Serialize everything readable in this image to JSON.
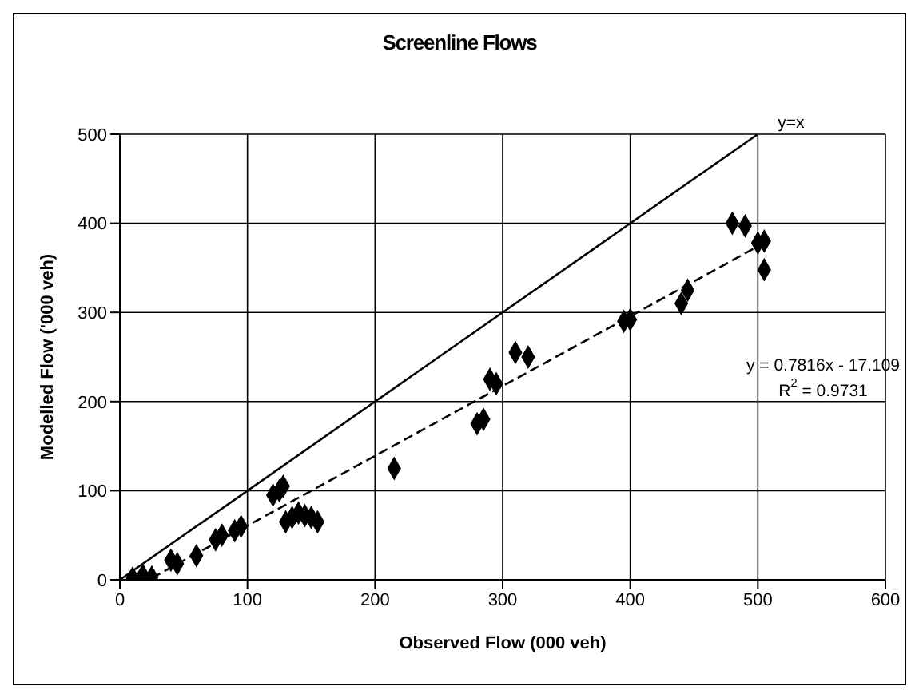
{
  "chart_data": {
    "type": "scatter",
    "title": "Screenline Flows",
    "xlabel": "Observed Flow (000 veh)",
    "ylabel": "Modelled  Flow  ('000  veh)",
    "xlim": [
      0,
      600
    ],
    "xticks": [
      0,
      100,
      200,
      300,
      400,
      500,
      600
    ],
    "ylim": [
      0,
      500
    ],
    "yticks": [
      0,
      100,
      200,
      300,
      400,
      500
    ],
    "grid": true,
    "marker": "diamond",
    "series": [
      {
        "type": "scatter",
        "color": "#000000",
        "x": [
          10,
          18,
          25,
          40,
          45,
          60,
          75,
          80,
          90,
          95,
          120,
          125,
          128,
          130,
          135,
          140,
          145,
          150,
          155,
          215,
          280,
          285,
          290,
          295,
          310,
          320,
          395,
          400,
          440,
          445,
          480,
          490,
          500,
          505,
          505
        ],
        "values": [
          2,
          5,
          3,
          22,
          18,
          27,
          45,
          50,
          55,
          60,
          95,
          100,
          105,
          65,
          70,
          75,
          72,
          70,
          65,
          125,
          175,
          180,
          225,
          220,
          255,
          250,
          290,
          292,
          310,
          325,
          400,
          397,
          378,
          380,
          348
        ]
      },
      {
        "type": "line",
        "color": "#000000",
        "line_style": "solid",
        "marker": "none",
        "x": [
          0,
          500
        ],
        "values": [
          0,
          500
        ]
      },
      {
        "type": "line",
        "color": "#000000",
        "line_style": "dashed",
        "marker": "none",
        "x": [
          25,
          505
        ],
        "values": [
          2,
          378
        ]
      }
    ],
    "annotations": [
      "y=x",
      "y = 0.7816x - 17.109",
      "R$^{2}$ = 0.9731"
    ]
  }
}
